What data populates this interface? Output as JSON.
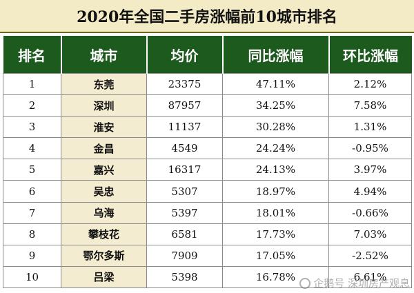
{
  "title": "2020年全国二手房涨幅前10城市排名",
  "columns": [
    "排名",
    "城市",
    "均价",
    "同比涨幅",
    "环比涨幅"
  ],
  "rows": [
    {
      "rank": "1",
      "city": "东莞",
      "price": "23375",
      "yoy": "47.11%",
      "mom": "2.12%"
    },
    {
      "rank": "2",
      "city": "深圳",
      "price": "87957",
      "yoy": "34.25%",
      "mom": "7.58%"
    },
    {
      "rank": "3",
      "city": "淮安",
      "price": "11137",
      "yoy": "30.28%",
      "mom": "1.31%"
    },
    {
      "rank": "4",
      "city": "金昌",
      "price": "4549",
      "yoy": "24.24%",
      "mom": "-0.95%"
    },
    {
      "rank": "5",
      "city": "嘉兴",
      "price": "16317",
      "yoy": "24.13%",
      "mom": "3.97%"
    },
    {
      "rank": "6",
      "city": "吴忠",
      "price": "5307",
      "yoy": "18.97%",
      "mom": "4.94%"
    },
    {
      "rank": "7",
      "city": "乌海",
      "price": "5397",
      "yoy": "18.01%",
      "mom": "-0.66%"
    },
    {
      "rank": "8",
      "city": "攀枝花",
      "price": "6581",
      "yoy": "17.73%",
      "mom": "7.03%"
    },
    {
      "rank": "9",
      "city": "鄂尔多斯",
      "price": "7909",
      "yoy": "17.05%",
      "mom": "-2.52%"
    },
    {
      "rank": "10",
      "city": "吕梁",
      "price": "5398",
      "yoy": "16.78%",
      "mom": "6.61%"
    }
  ],
  "watermark": "企鹅号 深圳房产观息",
  "colors": {
    "header_bg": "#1d5a1d",
    "title_bg": "#f3ebc6",
    "city_bg": "#f3ecd0"
  }
}
